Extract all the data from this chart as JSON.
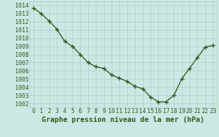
{
  "x": [
    0,
    1,
    2,
    3,
    4,
    5,
    6,
    7,
    8,
    9,
    10,
    11,
    12,
    13,
    14,
    15,
    16,
    17,
    18,
    19,
    20,
    21,
    22,
    23
  ],
  "y": [
    1013.7,
    1013.0,
    1012.1,
    1011.1,
    1009.6,
    1009.0,
    1008.0,
    1007.0,
    1006.5,
    1006.3,
    1005.5,
    1005.1,
    1004.7,
    1004.1,
    1003.8,
    1002.8,
    1002.2,
    1002.2,
    1003.0,
    1005.0,
    1006.3,
    1007.6,
    1008.9,
    1009.1
  ],
  "line_color": "#2d5a1b",
  "marker": "+",
  "marker_size": 4,
  "bg_color": "#cce8e4",
  "grid_color": "#aaccca",
  "xlabel": "Graphe pression niveau de la mer (hPa)",
  "xlabel_fontsize": 7.5,
  "tick_fontsize": 6.0,
  "ylim": [
    1001.5,
    1014.5
  ],
  "yticks": [
    1002,
    1003,
    1004,
    1005,
    1006,
    1007,
    1008,
    1009,
    1010,
    1011,
    1012,
    1013,
    1014
  ],
  "line_width": 1.0,
  "line_color_hex": "#2d5a1b"
}
